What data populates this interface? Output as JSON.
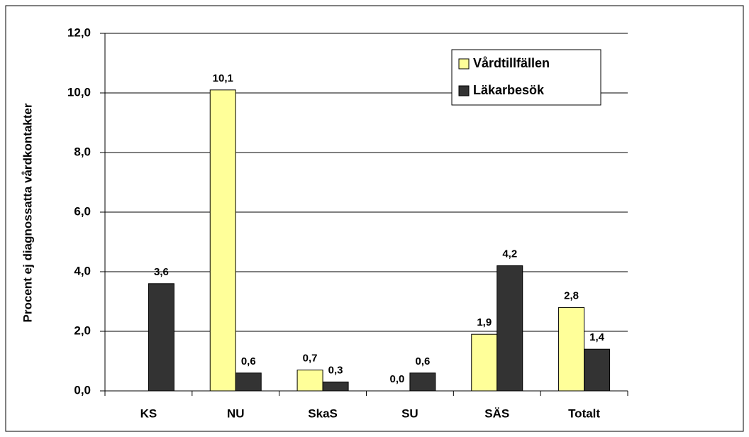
{
  "chart_data": {
    "type": "bar",
    "y_label": "Procent ej diagnossatta vårdkontakter",
    "categories": [
      "KS",
      "NU",
      "SkaS",
      "SU",
      "SÄS",
      "Totalt"
    ],
    "series": [
      {
        "name": "Vårdtillfällen",
        "color": "#ffff99",
        "values": [
          null,
          10.1,
          0.7,
          0.0,
          1.9,
          2.8
        ],
        "value_labels": [
          null,
          "10,1",
          "0,7",
          "0,0",
          "1,9",
          "2,8"
        ]
      },
      {
        "name": "Läkarbesök",
        "color": "#333333",
        "values": [
          3.6,
          0.6,
          0.3,
          0.6,
          4.2,
          1.4
        ],
        "value_labels": [
          "3,6",
          "0,6",
          "0,3",
          "0,6",
          "4,2",
          "1,4"
        ]
      }
    ],
    "ylim": [
      0,
      12
    ],
    "yticks": [
      {
        "value": 0,
        "label": "0,0"
      },
      {
        "value": 2,
        "label": "2,0"
      },
      {
        "value": 4,
        "label": "4,0"
      },
      {
        "value": 6,
        "label": "6,0"
      },
      {
        "value": 8,
        "label": "8,0"
      },
      {
        "value": 10,
        "label": "10,0"
      },
      {
        "value": 12,
        "label": "12,0"
      }
    ],
    "grid": true,
    "legend": "upper right"
  }
}
